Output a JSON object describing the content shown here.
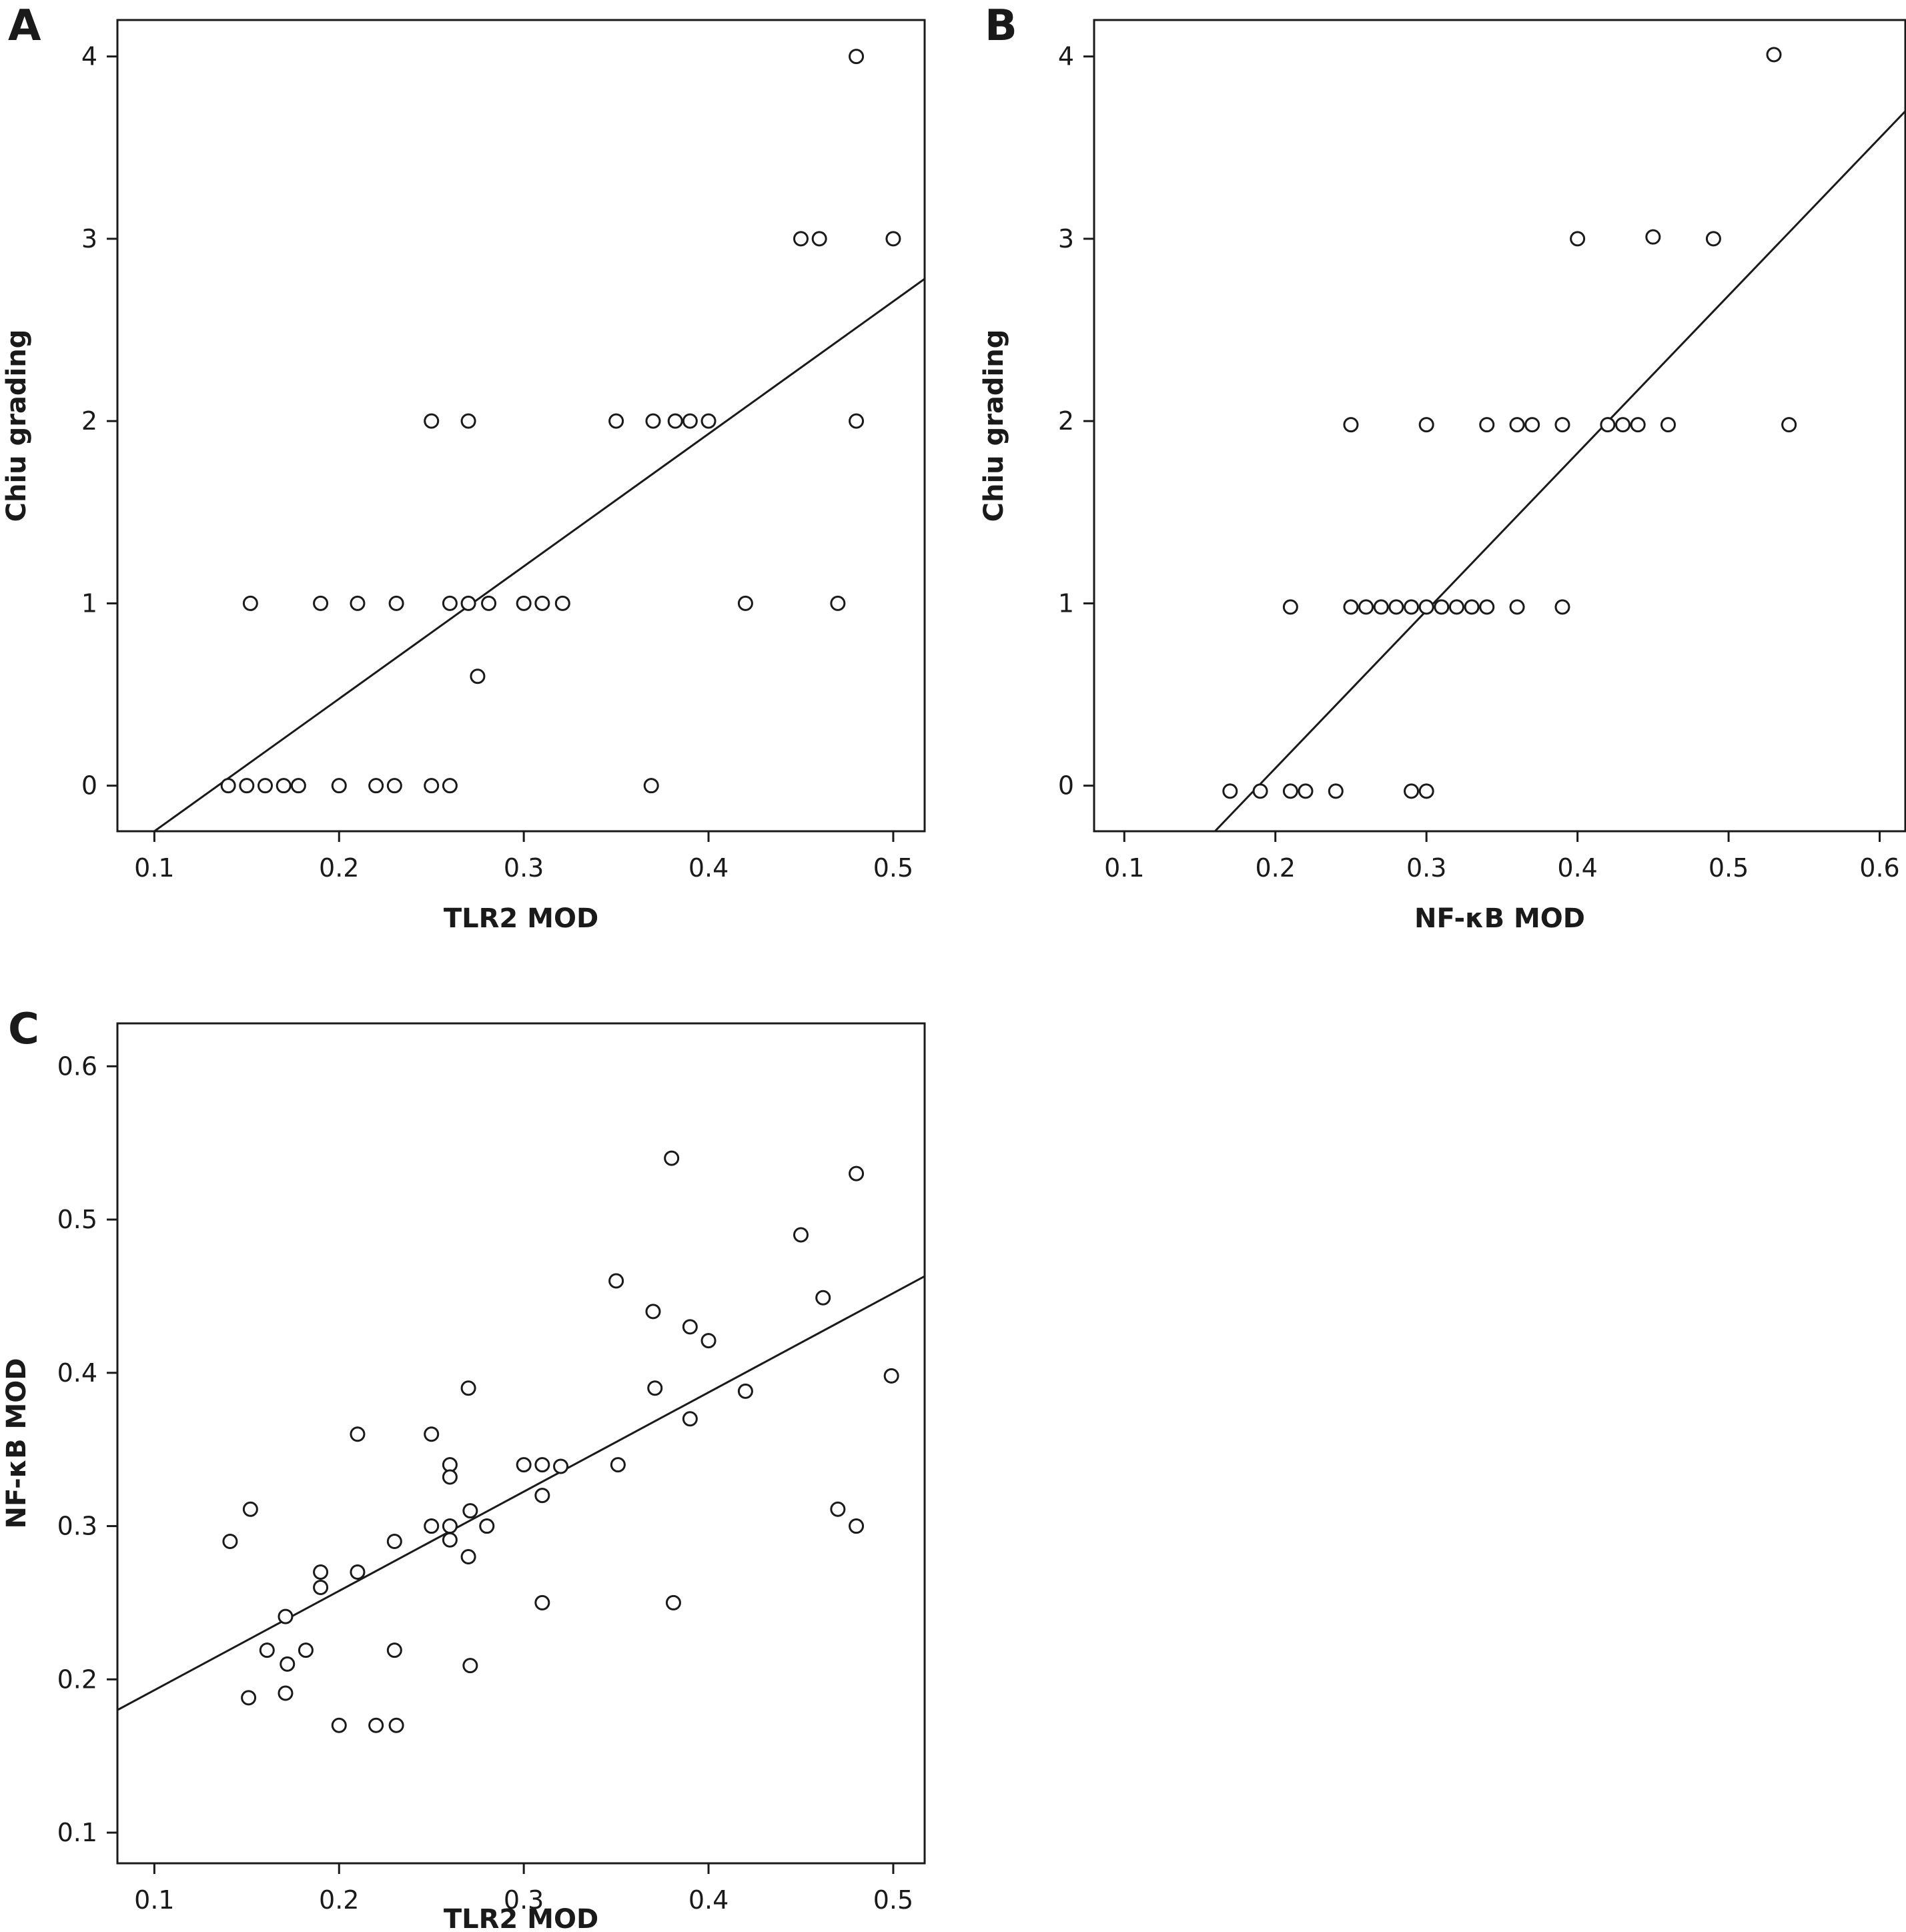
{
  "chart_data": [
    {
      "panel": "A",
      "type": "scatter",
      "xlabel": "TLR2 MOD",
      "ylabel": "Chiu grading",
      "xlim": [
        0.08,
        0.517
      ],
      "ylim": [
        -0.25,
        4.2
      ],
      "xticks": [
        0.1,
        0.2,
        0.3,
        0.4,
        0.5
      ],
      "xtick_labels": [
        "0.1",
        "0.2",
        "0.3",
        "0.4",
        "0.5"
      ],
      "yticks": [
        0,
        1,
        2,
        3,
        4
      ],
      "ytick_labels": [
        "0",
        "1",
        "2",
        "3",
        "4"
      ],
      "grid": false,
      "fit_line": [
        [
          0.1,
          -0.25
        ],
        [
          0.517,
          2.78
        ]
      ],
      "points": [
        [
          0.14,
          0
        ],
        [
          0.15,
          0
        ],
        [
          0.16,
          0
        ],
        [
          0.17,
          0
        ],
        [
          0.178,
          0
        ],
        [
          0.2,
          0
        ],
        [
          0.22,
          0
        ],
        [
          0.23,
          0
        ],
        [
          0.25,
          0
        ],
        [
          0.26,
          0
        ],
        [
          0.369,
          0
        ],
        [
          0.275,
          0.6
        ],
        [
          0.152,
          1
        ],
        [
          0.19,
          1
        ],
        [
          0.21,
          1
        ],
        [
          0.231,
          1
        ],
        [
          0.26,
          1
        ],
        [
          0.27,
          1
        ],
        [
          0.281,
          1
        ],
        [
          0.3,
          1
        ],
        [
          0.31,
          1
        ],
        [
          0.321,
          1
        ],
        [
          0.42,
          1
        ],
        [
          0.47,
          1
        ],
        [
          0.25,
          2
        ],
        [
          0.27,
          2
        ],
        [
          0.35,
          2
        ],
        [
          0.37,
          2
        ],
        [
          0.382,
          2
        ],
        [
          0.39,
          2
        ],
        [
          0.4,
          2
        ],
        [
          0.48,
          2
        ],
        [
          0.45,
          3
        ],
        [
          0.46,
          3
        ],
        [
          0.5,
          3
        ],
        [
          0.48,
          4
        ]
      ]
    },
    {
      "panel": "B",
      "type": "scatter",
      "xlabel": "NF-κB MOD",
      "ylabel": "Chiu grading",
      "xlim": [
        0.08,
        0.617
      ],
      "ylim": [
        -0.25,
        4.2
      ],
      "xticks": [
        0.1,
        0.2,
        0.3,
        0.4,
        0.5,
        0.6
      ],
      "xtick_labels": [
        "0.1",
        "0.2",
        "0.3",
        "0.4",
        "0.5",
        "0.6"
      ],
      "yticks": [
        0,
        1,
        2,
        3,
        4
      ],
      "ytick_labels": [
        "0",
        "1",
        "2",
        "3",
        "4"
      ],
      "grid": false,
      "fit_line": [
        [
          0.16,
          -0.25
        ],
        [
          0.617,
          3.7
        ]
      ],
      "points": [
        [
          0.17,
          -0.03
        ],
        [
          0.19,
          -0.03
        ],
        [
          0.21,
          -0.03
        ],
        [
          0.22,
          -0.03
        ],
        [
          0.24,
          -0.03
        ],
        [
          0.29,
          -0.03
        ],
        [
          0.3,
          -0.03
        ],
        [
          0.21,
          0.98
        ],
        [
          0.25,
          0.98
        ],
        [
          0.26,
          0.98
        ],
        [
          0.27,
          0.98
        ],
        [
          0.28,
          0.98
        ],
        [
          0.29,
          0.98
        ],
        [
          0.3,
          0.98
        ],
        [
          0.31,
          0.98
        ],
        [
          0.32,
          0.98
        ],
        [
          0.33,
          0.98
        ],
        [
          0.34,
          0.98
        ],
        [
          0.36,
          0.98
        ],
        [
          0.39,
          0.98
        ],
        [
          0.25,
          1.98
        ],
        [
          0.3,
          1.98
        ],
        [
          0.34,
          1.98
        ],
        [
          0.36,
          1.98
        ],
        [
          0.37,
          1.98
        ],
        [
          0.39,
          1.98
        ],
        [
          0.42,
          1.98
        ],
        [
          0.43,
          1.98
        ],
        [
          0.44,
          1.98
        ],
        [
          0.46,
          1.98
        ],
        [
          0.54,
          1.98
        ],
        [
          0.4,
          3
        ],
        [
          0.45,
          3.01
        ],
        [
          0.49,
          3
        ],
        [
          0.53,
          4.01
        ]
      ]
    },
    {
      "panel": "C",
      "type": "scatter",
      "xlabel": "TLR2 MOD",
      "ylabel": "NF-κB MOD",
      "xlim": [
        0.08,
        0.517
      ],
      "ylim": [
        0.08,
        0.628
      ],
      "xticks": [
        0.1,
        0.2,
        0.3,
        0.4,
        0.5
      ],
      "xtick_labels": [
        "0.1",
        "0.2",
        "0.3",
        "0.4",
        "0.5"
      ],
      "yticks": [
        0.1,
        0.2,
        0.3,
        0.4,
        0.5,
        0.6
      ],
      "ytick_labels": [
        "0.1",
        "0.2",
        "0.3",
        "0.4",
        "0.5",
        "0.6"
      ],
      "grid": false,
      "fit_line": [
        [
          0.08,
          0.18
        ],
        [
          0.517,
          0.463
        ]
      ],
      "points": [
        [
          0.141,
          0.29
        ],
        [
          0.152,
          0.311
        ],
        [
          0.151,
          0.188
        ],
        [
          0.161,
          0.219
        ],
        [
          0.171,
          0.241
        ],
        [
          0.172,
          0.21
        ],
        [
          0.171,
          0.191
        ],
        [
          0.182,
          0.219
        ],
        [
          0.19,
          0.27
        ],
        [
          0.19,
          0.26
        ],
        [
          0.2,
          0.17
        ],
        [
          0.21,
          0.36
        ],
        [
          0.21,
          0.27
        ],
        [
          0.22,
          0.17
        ],
        [
          0.231,
          0.17
        ],
        [
          0.23,
          0.29
        ],
        [
          0.23,
          0.219
        ],
        [
          0.25,
          0.36
        ],
        [
          0.25,
          0.3
        ],
        [
          0.26,
          0.34
        ],
        [
          0.26,
          0.332
        ],
        [
          0.26,
          0.3
        ],
        [
          0.26,
          0.291
        ],
        [
          0.27,
          0.39
        ],
        [
          0.271,
          0.31
        ],
        [
          0.27,
          0.28
        ],
        [
          0.271,
          0.209
        ],
        [
          0.28,
          0.3
        ],
        [
          0.3,
          0.34
        ],
        [
          0.31,
          0.34
        ],
        [
          0.31,
          0.32
        ],
        [
          0.31,
          0.25
        ],
        [
          0.32,
          0.339
        ],
        [
          0.35,
          0.46
        ],
        [
          0.351,
          0.34
        ],
        [
          0.37,
          0.44
        ],
        [
          0.371,
          0.39
        ],
        [
          0.38,
          0.54
        ],
        [
          0.381,
          0.25
        ],
        [
          0.39,
          0.43
        ],
        [
          0.39,
          0.37
        ],
        [
          0.4,
          0.421
        ],
        [
          0.42,
          0.388
        ],
        [
          0.45,
          0.49
        ],
        [
          0.462,
          0.449
        ],
        [
          0.47,
          0.311
        ],
        [
          0.48,
          0.53
        ],
        [
          0.48,
          0.3
        ],
        [
          0.499,
          0.398
        ]
      ]
    }
  ]
}
